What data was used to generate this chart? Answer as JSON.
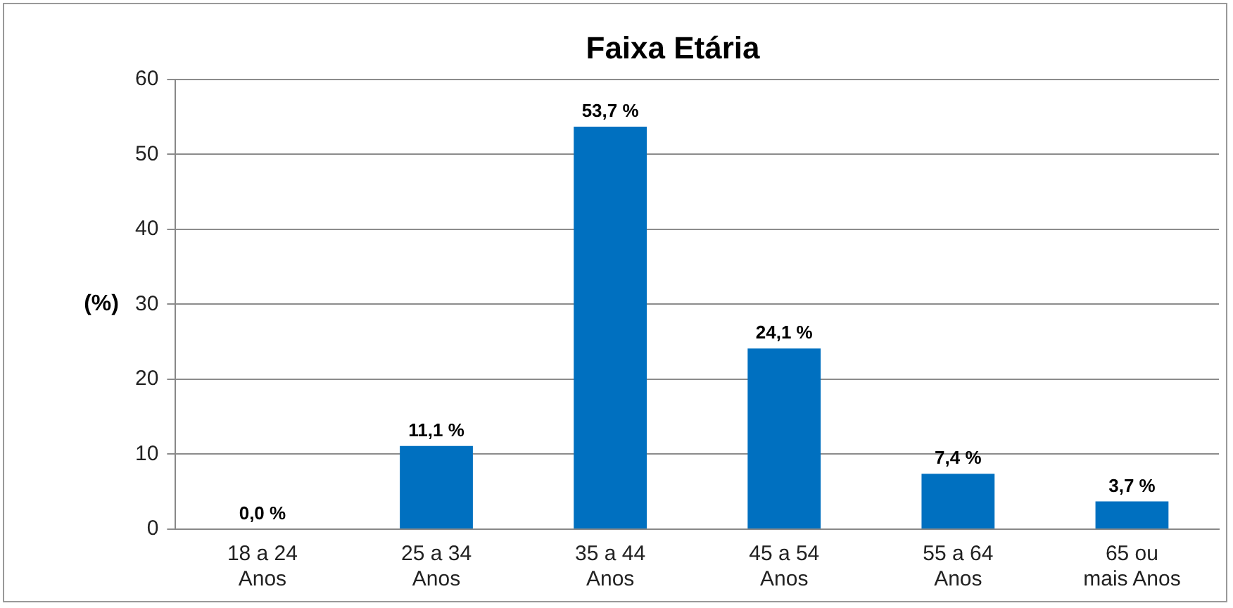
{
  "chart_data": {
    "type": "bar",
    "title": "Faixa Etária",
    "ylabel": "(%)",
    "categories": [
      "18 a 24\nAnos",
      "25 a 34\nAnos",
      "35 a 44\nAnos",
      "45 a 54\nAnos",
      "55 a 64\nAnos",
      "65 ou\nmais Anos"
    ],
    "values": [
      0,
      11.1,
      53.7,
      24.1,
      7.4,
      3.7
    ],
    "value_labels": [
      "0,0 %",
      "11,1 %",
      "53,7 %",
      "24,1 %",
      "7,4 %",
      "3,7 %"
    ],
    "color": "#0070c0",
    "ylim": [
      0,
      60
    ],
    "yticks": [
      0,
      10,
      20,
      30,
      40,
      50,
      60
    ],
    "grid": "y",
    "legend": false
  }
}
